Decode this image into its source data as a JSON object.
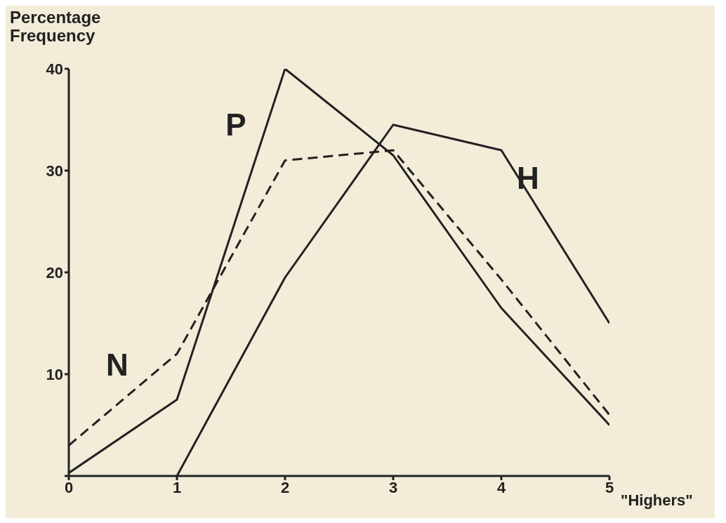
{
  "chart_data": {
    "type": "line",
    "ylabel": "Percentage Frequency",
    "xlabel": "\"Highers\"",
    "x": [
      0,
      1,
      2,
      3,
      4,
      5
    ],
    "xlim": [
      0,
      5
    ],
    "xticks": [
      0,
      1,
      2,
      3,
      4,
      5
    ],
    "ylim": [
      0,
      40
    ],
    "yticks": [
      {
        "value": 0,
        "label": null
      },
      10,
      20,
      30,
      40
    ],
    "marker": "none",
    "series": [
      {
        "name": "P",
        "color": "#222222",
        "line_style": "solid",
        "values": [
          0.3,
          7.5,
          40,
          31.5,
          16.5,
          5
        ]
      },
      {
        "name": "N",
        "color": "#222222",
        "line_style": "dashed",
        "values": [
          3,
          12,
          31,
          32,
          19.3,
          6
        ]
      },
      {
        "name": "H",
        "color": "#222222",
        "line_style": "solid",
        "values": [
          null,
          0,
          19.5,
          34.5,
          32,
          15
        ]
      }
    ]
  }
}
